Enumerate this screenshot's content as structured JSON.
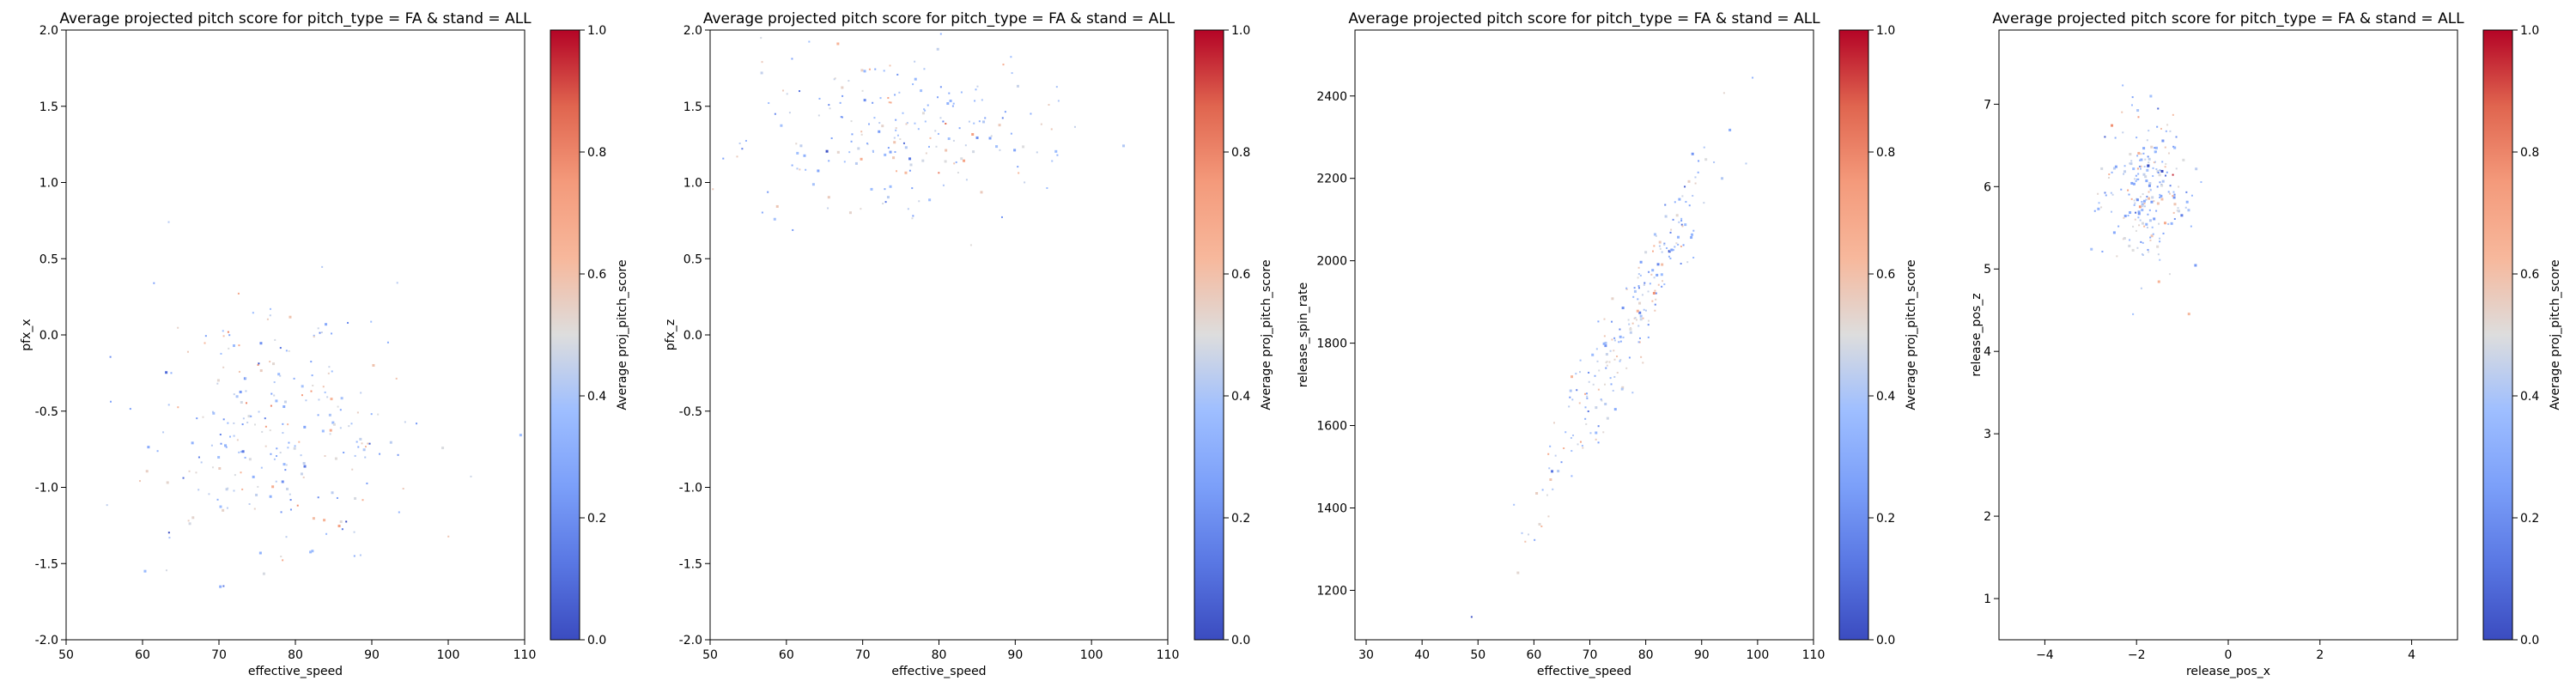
{
  "chart_data": [
    {
      "type": "scatter",
      "title": "Average projected pitch score for pitch_type = FA & stand = ALL",
      "xlabel": "effective_speed",
      "ylabel": "pfx_x",
      "xlim": [
        50,
        110
      ],
      "ylim": [
        -2.0,
        2.0
      ],
      "xticks": [
        "50",
        "60",
        "70",
        "80",
        "90",
        "100",
        "110"
      ],
      "yticks": [
        "-2.0",
        "-1.5",
        "-1.0",
        "-0.5",
        "0.0",
        "0.5",
        "1.0",
        "1.5",
        "2.0"
      ],
      "colorbar": {
        "label": "Average proj_pitch_score",
        "min": 0.0,
        "max": 1.0,
        "ticks": [
          "0.0",
          "0.2",
          "0.4",
          "0.6",
          "0.8",
          "1.0"
        ]
      },
      "points_summary": {
        "x_center": 78,
        "x_spread": 9,
        "y_center": -0.6,
        "y_spread": 0.45,
        "count": 260
      }
    },
    {
      "type": "scatter",
      "title": "Average projected pitch score for pitch_type = FA & stand = ALL",
      "xlabel": "effective_speed",
      "ylabel": "pfx_z",
      "xlim": [
        50,
        110
      ],
      "ylim": [
        -2.0,
        2.0
      ],
      "xticks": [
        "50",
        "60",
        "70",
        "80",
        "90",
        "100",
        "110"
      ],
      "yticks": [
        "-2.0",
        "-1.5",
        "-1.0",
        "-0.5",
        "0.0",
        "0.5",
        "1.0",
        "1.5",
        "2.0"
      ],
      "colorbar": {
        "label": "Average proj_pitch_score",
        "min": 0.0,
        "max": 1.0,
        "ticks": [
          "0.0",
          "0.2",
          "0.4",
          "0.6",
          "0.8",
          "1.0"
        ]
      },
      "points_summary": {
        "x_center": 75,
        "x_spread": 10,
        "y_center": 1.3,
        "y_spread": 0.3,
        "count": 220
      }
    },
    {
      "type": "scatter",
      "title": "Average projected pitch score for pitch_type = FA & stand = ALL",
      "xlabel": "effective_speed",
      "ylabel": "release_spin_rate",
      "xlim": [
        28,
        110
      ],
      "ylim": [
        1080,
        2560
      ],
      "xticks": [
        "30",
        "40",
        "50",
        "60",
        "70",
        "80",
        "90",
        "100",
        "110"
      ],
      "yticks": [
        "1200",
        "1400",
        "1600",
        "1800",
        "2000",
        "2200",
        "2400"
      ],
      "colorbar": {
        "label": "Average proj_pitch_score",
        "min": 0.0,
        "max": 1.0,
        "ticks": [
          "0.0",
          "0.2",
          "0.4",
          "0.6",
          "0.8",
          "1.0"
        ]
      },
      "points_summary": {
        "x_center": 77,
        "x_spread": 9,
        "trend_slope": 26,
        "y_at_center": 1850,
        "count": 240
      }
    },
    {
      "type": "scatter",
      "title": "Average projected pitch score for pitch_type = FA & stand = ALL",
      "xlabel": "release_pos_x",
      "ylabel": "release_pos_z",
      "xlim": [
        -5,
        5
      ],
      "ylim": [
        0.5,
        7.9
      ],
      "xticks": [
        "−4",
        "−2",
        "0",
        "2",
        "4"
      ],
      "yticks": [
        "1",
        "2",
        "3",
        "4",
        "5",
        "6",
        "7"
      ],
      "colorbar": {
        "label": "Average proj_pitch_score",
        "min": 0.0,
        "max": 1.0,
        "ticks": [
          "0.0",
          "0.2",
          "0.4",
          "0.6",
          "0.8",
          "1.0"
        ]
      },
      "points_summary": {
        "x_center": -1.8,
        "x_spread": 0.45,
        "y_center": 5.9,
        "y_spread": 0.5,
        "count": 230
      }
    }
  ]
}
